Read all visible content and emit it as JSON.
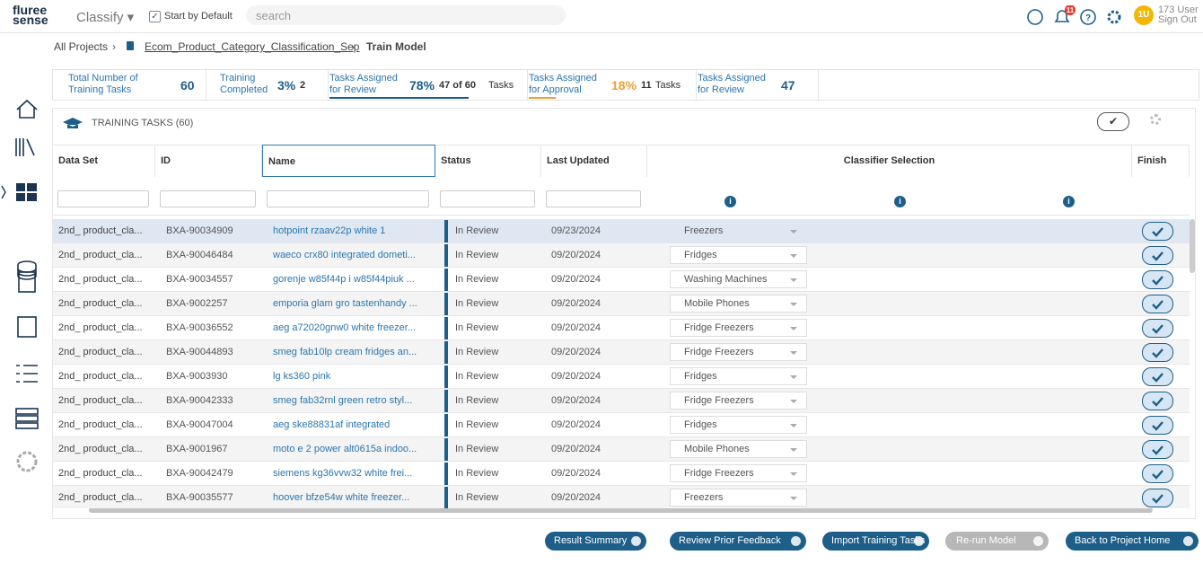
{
  "header": {
    "logo_top": "fluree",
    "logo_bottom": "sense",
    "app": "Classify",
    "start_by_default": "Start by Default",
    "search": "search",
    "notifications": "11",
    "user_initials": "1U",
    "user_name": "173 User",
    "sign_out": "Sign Out"
  },
  "breadcrumb": [
    "All Projects",
    "Ecom_Product_Category_Classification_Sep",
    "Train Model"
  ],
  "stats": [
    {
      "label": "Total Number of Training Tasks",
      "value": "60"
    },
    {
      "label": "Training Completed",
      "value": "3%",
      "detail": "2"
    },
    {
      "label": "Tasks Assigned for Review",
      "value": "78%",
      "detail": "47 of 60",
      "unit": "Tasks"
    },
    {
      "label": "Tasks Assigned for Approval",
      "value": "18%",
      "detail": "11",
      "unit": "Tasks"
    },
    {
      "label": "Tasks Assigned for Review",
      "value": "47"
    }
  ],
  "panel": {
    "title": "TRAINING TASKS (60)"
  },
  "table": {
    "columns": [
      "Data Set",
      "ID",
      "Name",
      "Status",
      "Last Updated",
      "Classifier Selection",
      "Finish"
    ],
    "rows": [
      [
        "2nd_ product_cla...",
        "BXA-90034909",
        "hotpoint rzaav22p white 1",
        "In Review",
        "09/23/2024",
        "Freezers"
      ],
      [
        "2nd_ product_cla...",
        "BXA-90046484",
        "waeco crx80 integrated dometi...",
        "In Review",
        "09/20/2024",
        "Fridges"
      ],
      [
        "2nd_ product_cla...",
        "BXA-90034557",
        "gorenje w85f44p i w85f44piuk ...",
        "In Review",
        "09/20/2024",
        "Washing Machines"
      ],
      [
        "2nd_ product_cla...",
        "BXA-9002257",
        "emporia glam gro tastenhandy ...",
        "In Review",
        "09/20/2024",
        "Mobile Phones"
      ],
      [
        "2nd_ product_cla...",
        "BXA-90036552",
        "aeg a72020gnw0 white freezer...",
        "In Review",
        "09/20/2024",
        "Fridge Freezers"
      ],
      [
        "2nd_ product_cla...",
        "BXA-90044893",
        "smeg fab10lp cream fridges an...",
        "In Review",
        "09/20/2024",
        "Fridge Freezers"
      ],
      [
        "2nd_ product_cla...",
        "BXA-9003930",
        "lg ks360 pink",
        "In Review",
        "09/20/2024",
        "Fridges"
      ],
      [
        "2nd_ product_cla...",
        "BXA-90042333",
        "smeg fab32rnl green retro styl...",
        "In Review",
        "09/20/2024",
        "Fridge Freezers"
      ],
      [
        "2nd_ product_cla...",
        "BXA-90047004",
        "aeg ske88831af integrated",
        "In Review",
        "09/20/2024",
        "Fridges"
      ],
      [
        "2nd_ product_cla...",
        "BXA-9001967",
        "moto e 2 power alt0615a indoo...",
        "In Review",
        "09/20/2024",
        "Mobile Phones"
      ],
      [
        "2nd_ product_cla...",
        "BXA-90042479",
        "siemens kg36vvw32 white frei...",
        "In Review",
        "09/20/2024",
        "Fridge Freezers"
      ],
      [
        "2nd_ product_cla...",
        "BXA-90035577",
        "hoover bfze54w white freezer...",
        "In Review",
        "09/20/2024",
        "Freezers"
      ]
    ]
  },
  "buttons": [
    "Result Summary",
    "Review Prior Feedback",
    "Import Training Tasks",
    "Re-run Model",
    "Back to Project Home"
  ]
}
